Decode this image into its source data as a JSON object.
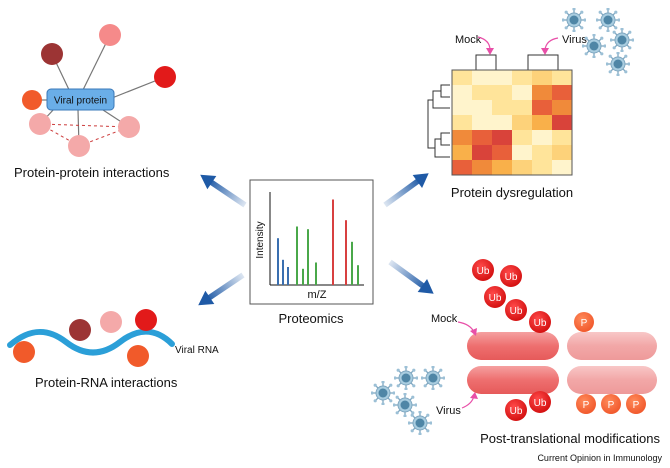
{
  "center": {
    "title": "Proteomics",
    "y_axis_label": "Intensity",
    "x_axis_label": "m/Z",
    "spectrum_bars": [
      {
        "color": "#3a6fb0",
        "rel_height": 0.52
      },
      {
        "color": "#3a6fb0",
        "rel_height": 0.28
      },
      {
        "color": "#3a6fb0",
        "rel_height": 0.2
      },
      {
        "color": "#4aa84a",
        "rel_height": 0.65
      },
      {
        "color": "#4aa84a",
        "rel_height": 0.18
      },
      {
        "color": "#4aa84a",
        "rel_height": 0.62
      },
      {
        "color": "#4aa84a",
        "rel_height": 0.25
      },
      {
        "color": "#d84040",
        "rel_height": 0.95
      },
      {
        "color": "#d84040",
        "rel_height": 0.72
      },
      {
        "color": "#4aa84a",
        "rel_height": 0.48
      },
      {
        "color": "#4aa84a",
        "rel_height": 0.22
      }
    ]
  },
  "ppi": {
    "title": "Protein-protein interactions",
    "hub_label": "Viral protein"
  },
  "dysregulation": {
    "title": "Protein dysregulation",
    "mock_label": "Mock",
    "virus_label": "Virus"
  },
  "rna": {
    "title": "Protein-RNA interactions",
    "rna_label": "Viral RNA"
  },
  "ptm": {
    "title": "Post-translational modifications",
    "mock_label": "Mock",
    "virus_label": "Virus",
    "ub_label": "Ub",
    "p_label": "P"
  },
  "footer": {
    "credit": "Current Opinion in Immunology"
  },
  "colors": {
    "arrow_blue": "#1f5aa6",
    "hub_blue": "#6aaee8",
    "ub_red": "#e21a1a",
    "rna_blue": "#2b9fd8",
    "pink_arrow": "#e84fa8"
  }
}
